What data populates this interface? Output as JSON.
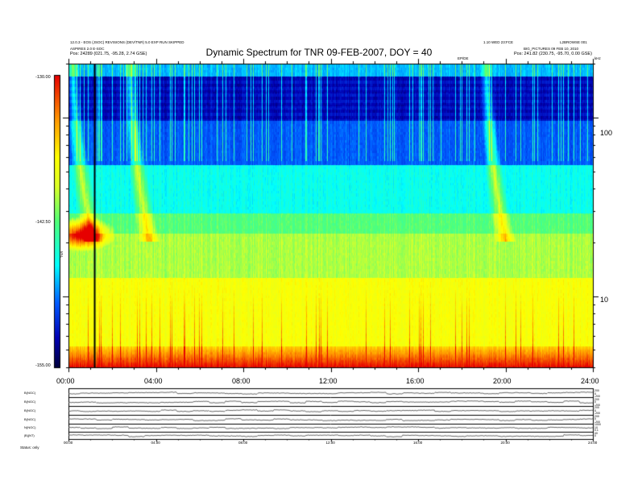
{
  "title": "Dynamic Spectrum for TNR 09-FEB-2007, DOY = 40",
  "header": {
    "left_line1": "12.0.3 - EOS (JSOC) REVISIONS (DEV/TNR) 5.0 EXP RUN SKIPPED",
    "left_line2": "ASPIRES 2.0 E-SOC",
    "left_pos": "Pos:  24289 (021.75, -95.28, 2.74 GSE)",
    "right_line1": "1.10 WED 23:FCE",
    "right_line1b": "L2BROWSE 001",
    "right_line2": "BIG_PICTURES 09 FEB 10, 2010",
    "right_pos": "Pos:  241.82 (230.75, -95.70, 0.00 GSE)",
    "mid_label": "EP/DE",
    "right_corner": "kHz"
  },
  "colors": {
    "low": "#00008b",
    "mid": "#00ffff",
    "high": "#ffff00",
    "peak": "#ff0000"
  },
  "chart_data": {
    "type": "heatmap",
    "title": "Dynamic Spectrum for TNR 09-FEB-2007, DOY = 40",
    "xlabel": "",
    "ylabel": "",
    "x_ticks": [
      "00:00",
      "04:00",
      "08:00",
      "12:00",
      "16:00",
      "20:00",
      "24:00"
    ],
    "x_range_hours": [
      0,
      24
    ],
    "y_scale": "log",
    "y_range_khz": [
      4,
      200
    ],
    "y_ticks": [
      "10",
      "100"
    ],
    "colorbar": {
      "label": "TNR",
      "ticks": [
        "-130.00",
        "-142.50",
        "-155.00"
      ],
      "range": [
        -155,
        -130
      ]
    },
    "events": [
      {
        "type": "type-III drift",
        "start_hour": 0.2,
        "end_hour": 2.5
      },
      {
        "type": "type-III drift",
        "start_hour": 2.8,
        "end_hour": 5.2
      },
      {
        "type": "type-III drift",
        "start_hour": 19.1,
        "end_hour": 19.8
      }
    ],
    "marker_hour": 1.2,
    "bottom_panel_labels": [
      "B(NGC)",
      "B(NGC)",
      "B(NGC)",
      "B(NGC)",
      "N(NGC)",
      "|B|(NT)"
    ],
    "bottom_right_ticks": [
      "200",
      "0",
      "-200",
      "200",
      "0",
      "-200",
      "200",
      "0",
      "-200",
      "200",
      "0",
      "-200",
      "1000",
      "10",
      "0.1",
      "40",
      "0"
    ],
    "bottom_x_ticks": [
      "00:00",
      "04:00",
      "08:00",
      "12:00",
      "16:00",
      "20:00",
      "24:00"
    ],
    "bottom_left_note": "Status:  only"
  }
}
